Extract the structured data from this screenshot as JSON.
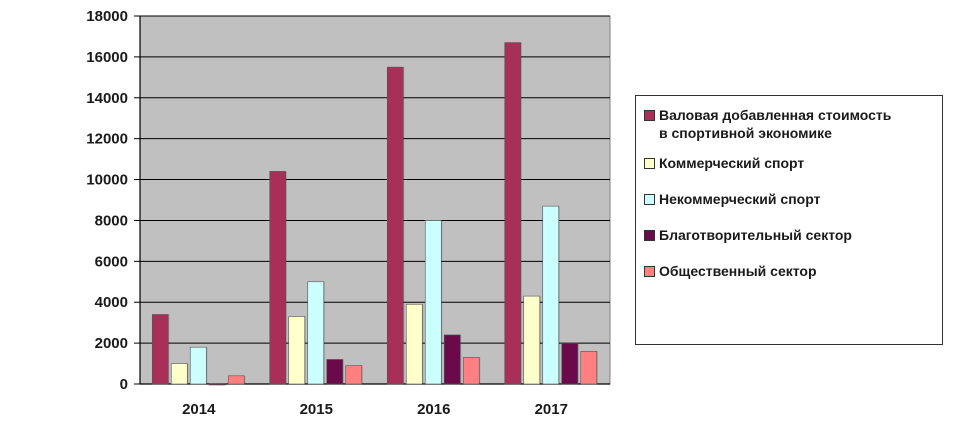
{
  "chart_data": {
    "type": "bar",
    "categories": [
      "2014",
      "2015",
      "2016",
      "2017"
    ],
    "series": [
      {
        "name": "Валовая добавленная стоимость\nв спортивной экономике",
        "color": "#a83058",
        "values": [
          3400,
          10400,
          15500,
          16700
        ]
      },
      {
        "name": "Коммерческий спорт",
        "color": "#ffffcc",
        "values": [
          1000,
          3300,
          3900,
          4300
        ]
      },
      {
        "name": "Некоммерческий спорт",
        "color": "#ccffff",
        "values": [
          1800,
          5000,
          8000,
          8700
        ]
      },
      {
        "name": "Благотворительный сектор",
        "color": "#6b0a4a",
        "values": [
          0,
          1200,
          2400,
          2000
        ]
      },
      {
        "name": "Общественный сектор",
        "color": "#ff8080",
        "values": [
          400,
          900,
          1300,
          1600
        ]
      }
    ],
    "yticks": [
      0,
      2000,
      4000,
      6000,
      8000,
      10000,
      12000,
      14000,
      16000,
      18000
    ],
    "ylim": [
      0,
      18000
    ],
    "grid": true,
    "plot_background": "#c0c0c0",
    "legend_position": "right"
  }
}
